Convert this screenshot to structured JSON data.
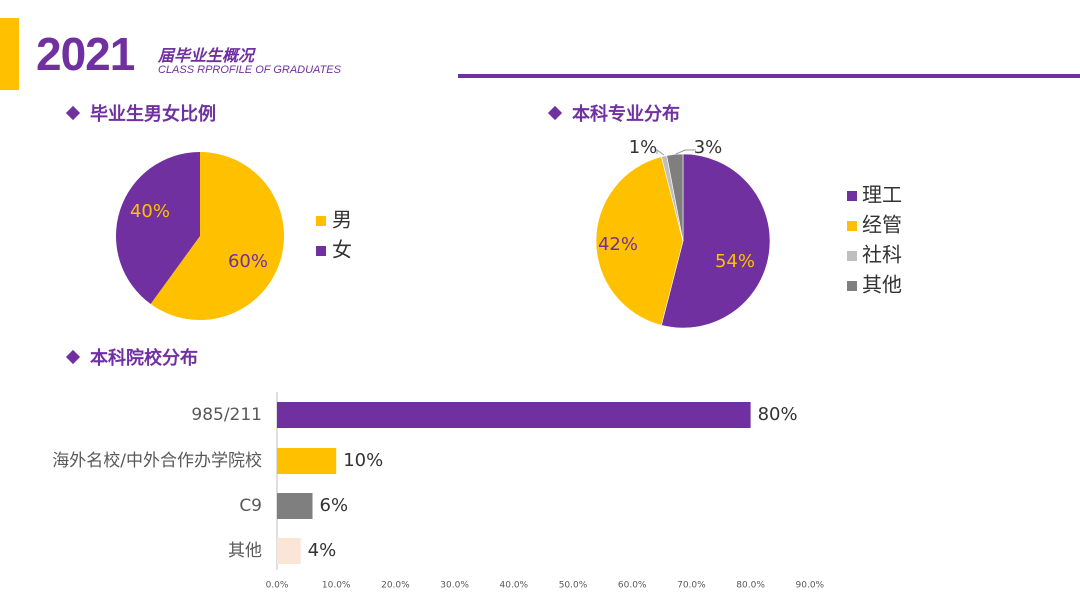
{
  "header": {
    "year": "2021",
    "title_cn": "届毕业生概况",
    "title_en": "CLASS RPROFILE OF GRADUATES"
  },
  "sections": {
    "gender": "毕业生男女比例",
    "major": "本科专业分布",
    "school": "本科院校分布"
  },
  "colors": {
    "purple": "#7030A0",
    "gold": "#FFC000",
    "lightgray": "#BFBFBF",
    "gray": "#7F7F7F",
    "peach": "#FBE5D6"
  },
  "chart_data": [
    {
      "type": "pie",
      "title": "毕业生男女比例",
      "slices": [
        {
          "name": "男",
          "value": 60,
          "label": "60%",
          "color": "#FFC000"
        },
        {
          "name": "女",
          "value": 40,
          "label": "40%",
          "color": "#7030A0"
        }
      ],
      "legend": "right"
    },
    {
      "type": "pie",
      "title": "本科专业分布",
      "slices": [
        {
          "name": "理工",
          "value": 54,
          "label": "54%",
          "color": "#7030A0"
        },
        {
          "name": "经管",
          "value": 42,
          "label": "42%",
          "color": "#FFC000"
        },
        {
          "name": "社科",
          "value": 1,
          "label": "1%",
          "color": "#BFBFBF"
        },
        {
          "name": "其他",
          "value": 3,
          "label": "3%",
          "color": "#7F7F7F"
        }
      ],
      "legend": "right"
    },
    {
      "type": "bar",
      "orientation": "horizontal",
      "title": "本科院校分布",
      "categories": [
        "985/211",
        "海外名校/中外合作办学院校",
        "C9",
        "其他"
      ],
      "values": [
        80,
        10,
        6,
        4
      ],
      "labels": [
        "80%",
        "10%",
        "6%",
        "4%"
      ],
      "colors": [
        "#7030A0",
        "#FFC000",
        "#7F7F7F",
        "#FBE5D6"
      ],
      "xlim": [
        0,
        90
      ],
      "xticks": [
        "0.0%",
        "10.0%",
        "20.0%",
        "30.0%",
        "40.0%",
        "50.0%",
        "60.0%",
        "70.0%",
        "80.0%",
        "90.0%"
      ],
      "grid": false
    }
  ]
}
